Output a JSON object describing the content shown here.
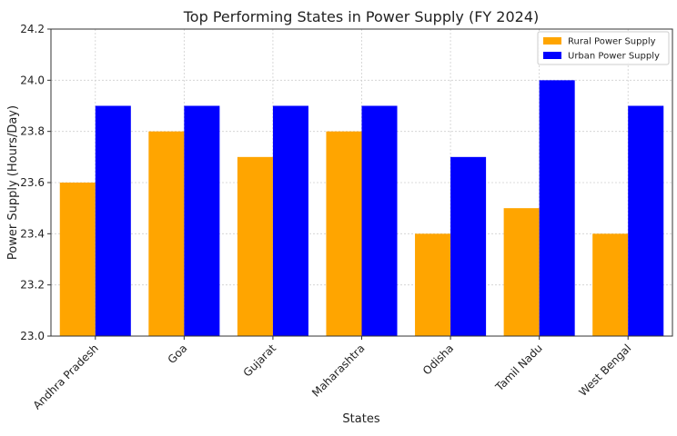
{
  "chart_data": {
    "type": "bar",
    "title": "Top Performing States in Power Supply (FY 2024)",
    "xlabel": "States",
    "ylabel": "Power Supply (Hours/Day)",
    "categories": [
      "Andhra Pradesh",
      "Goa",
      "Gujarat",
      "Maharashtra",
      "Odisha",
      "Tamil Nadu",
      "West Bengal"
    ],
    "series": [
      {
        "name": "Rural Power Supply",
        "color": "#FFA500",
        "values": [
          23.6,
          23.8,
          23.7,
          23.8,
          23.4,
          23.5,
          23.4
        ]
      },
      {
        "name": "Urban Power Supply",
        "color": "#0000FF",
        "values": [
          23.9,
          23.9,
          23.9,
          23.9,
          23.7,
          24.0,
          23.9
        ]
      }
    ],
    "ylim": [
      23.0,
      24.2
    ],
    "yticks": [
      "23.0",
      "23.2",
      "23.4",
      "23.6",
      "23.8",
      "24.0",
      "24.2"
    ],
    "grid": true,
    "legend_position": "top-right"
  }
}
